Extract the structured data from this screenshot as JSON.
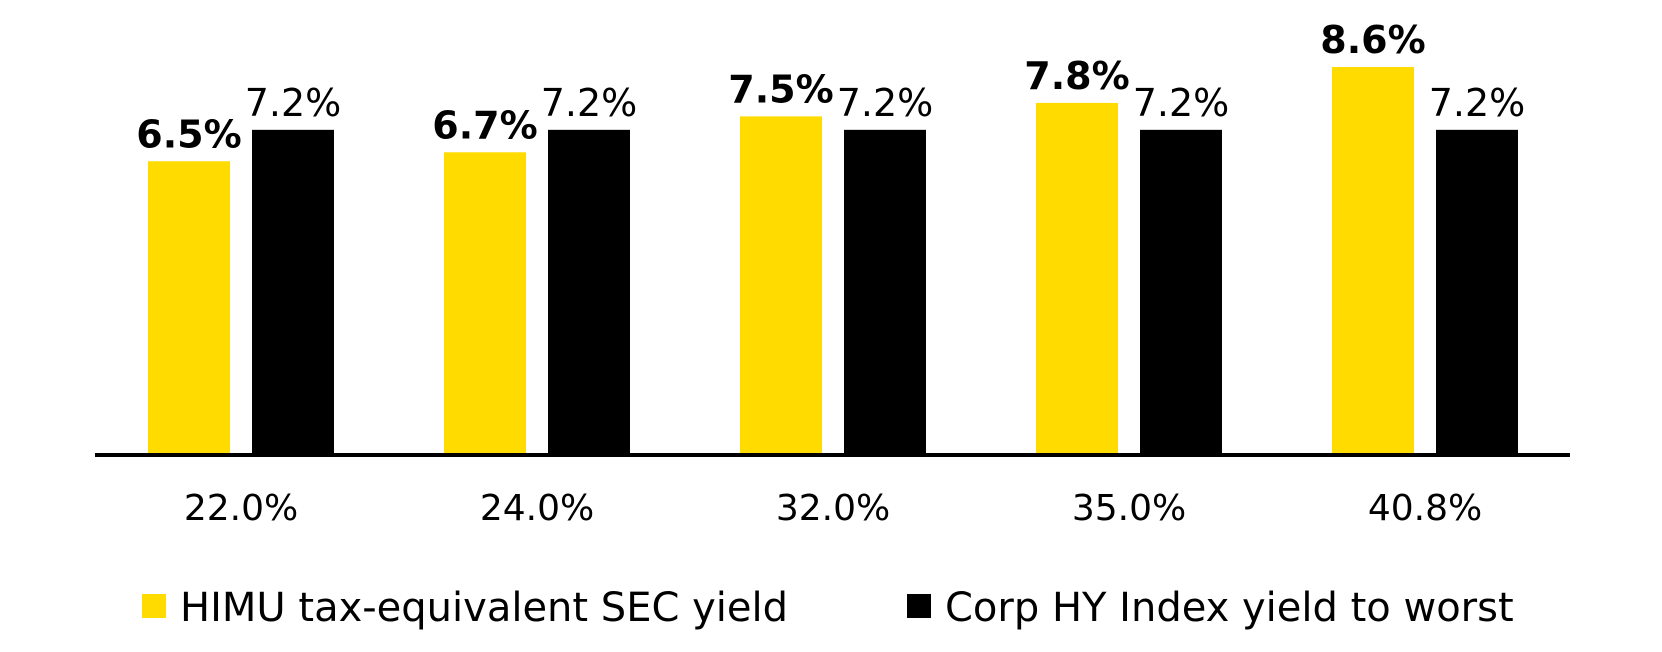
{
  "chart_data": {
    "type": "bar",
    "categories": [
      "22.0%",
      "24.0%",
      "32.0%",
      "35.0%",
      "40.8%"
    ],
    "series": [
      {
        "name": "HIMU tax-equivalent SEC yield",
        "values": [
          6.5,
          6.7,
          7.5,
          7.8,
          8.6
        ],
        "labels": [
          "6.5%",
          "6.7%",
          "7.5%",
          "7.8%",
          "8.6%"
        ],
        "color": "#FFDB00",
        "label_bold": true
      },
      {
        "name": "Corp HY Index yield to worst",
        "values": [
          7.2,
          7.2,
          7.2,
          7.2,
          7.2
        ],
        "labels": [
          "7.2%",
          "7.2%",
          "7.2%",
          "7.2%",
          "7.2%"
        ],
        "color": "#000000",
        "label_bold": false
      }
    ],
    "title": "",
    "xlabel": "",
    "ylabel": "",
    "ylim": [
      0,
      8.6
    ],
    "grid": false,
    "legend": "bottom"
  }
}
